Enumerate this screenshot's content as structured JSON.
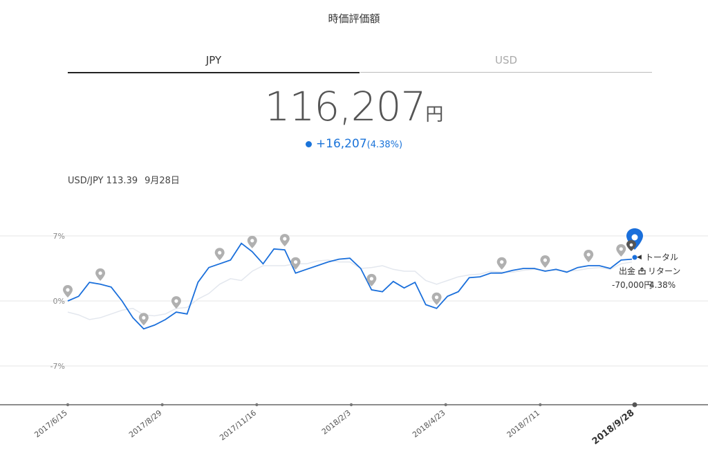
{
  "header": {
    "title": "時価評価額"
  },
  "tabs": [
    {
      "label": "JPY",
      "active": true
    },
    {
      "label": "USD",
      "active": false
    }
  ],
  "summary": {
    "total_value": "116,207",
    "unit": "円",
    "gain": "+16,207",
    "gain_pct": "(4.38%)"
  },
  "rate": {
    "pair": "USD/JPY 113.39",
    "date": "9月28日"
  },
  "legend": {
    "total_label": "トータル",
    "withdraw_label": "出金",
    "withdraw_value": "-70,000円",
    "return_label": "リターン",
    "return_value": "4.38%"
  },
  "colors": {
    "accent": "#1a6fdb",
    "benchmark": "#e3e7ee",
    "marker": "#b0b0b0"
  },
  "chart_data": {
    "type": "line",
    "yticks": [
      "7%",
      "0%",
      "-7%"
    ],
    "ylim": [
      -11,
      7
    ],
    "x_tick_labels": [
      "2017/6/15",
      "2017/8/29",
      "2017/11/16",
      "2018/2/3",
      "2018/4/23",
      "2018/7/11",
      "2018/9/28"
    ],
    "series": [
      {
        "name": "トータル",
        "values": [
          0,
          0.5,
          2,
          1.8,
          1.5,
          0,
          -1.8,
          -3,
          -2.6,
          -2,
          -1.2,
          -1.4,
          2,
          3.6,
          4,
          4.4,
          6.2,
          5.3,
          4,
          5.6,
          5.5,
          3,
          3.4,
          3.8,
          4.2,
          4.5,
          4.6,
          3.5,
          1.2,
          1,
          2.1,
          1.4,
          2,
          -0.4,
          -0.8,
          0.5,
          1,
          2.5,
          2.6,
          3,
          3,
          3.3,
          3.5,
          3.5,
          3.2,
          3.4,
          3.1,
          3.6,
          3.8,
          3.8,
          3.5,
          4.4,
          4.5
        ]
      },
      {
        "values": [
          -1.2,
          -1.5,
          -2,
          -1.8,
          -1.4,
          -1,
          -0.8,
          -1.5,
          -1.6,
          -1.4,
          -0.8,
          -0.7,
          0.2,
          0.8,
          1.8,
          2.4,
          2.2,
          3.2,
          3.8,
          3.8,
          3.8,
          4,
          4,
          4.3,
          4.4,
          4.2,
          4.2,
          3.5,
          3.6,
          3.8,
          3.4,
          3.2,
          3.2,
          2.2,
          1.8,
          2.2,
          2.6,
          2.8,
          2.9,
          3.2,
          3.1,
          3.1,
          3.3,
          3.4,
          3.3,
          3.3,
          3.2,
          3.3,
          3.5,
          3.6,
          3.4,
          4,
          4.2
        ]
      }
    ]
  }
}
